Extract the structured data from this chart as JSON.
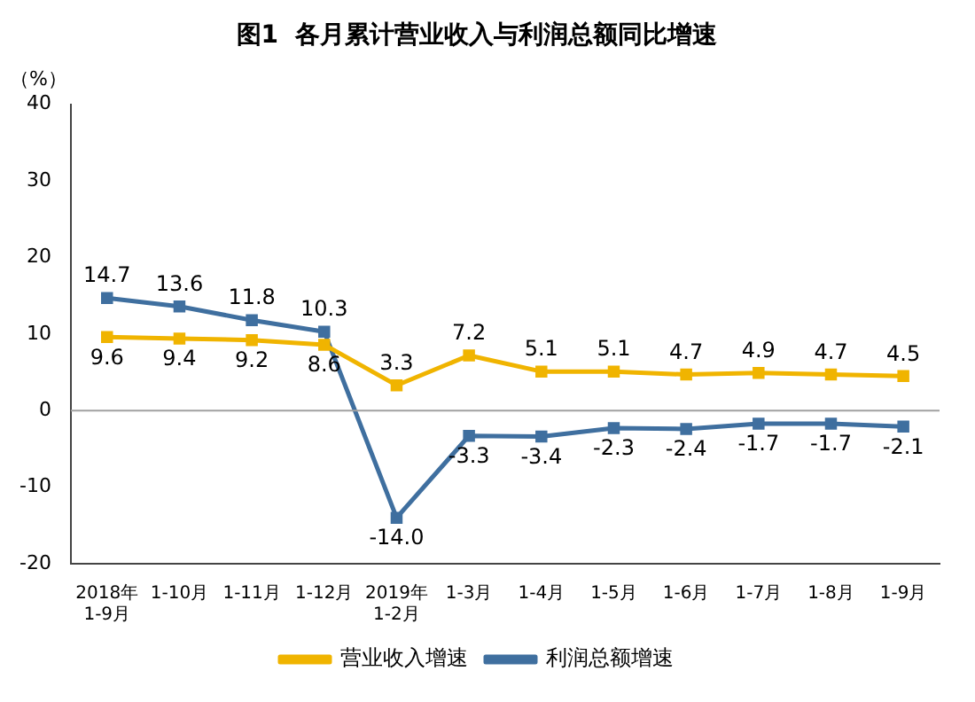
{
  "chart_data": {
    "type": "line",
    "title": "图1  各月累计营业收入与利润总额同比增速",
    "ylabel": "（%）",
    "categories": [
      "2018年\n1-9月",
      "1-10月",
      "1-11月",
      "1-12月",
      "2019年\n1-2月",
      "1-3月",
      "1-4月",
      "1-5月",
      "1-6月",
      "1-7月",
      "1-8月",
      "1-9月"
    ],
    "series": [
      {
        "name": "营业收入增速",
        "color": "#f0b400",
        "values": [
          9.6,
          9.4,
          9.2,
          8.6,
          3.3,
          7.2,
          5.1,
          5.1,
          4.7,
          4.9,
          4.7,
          4.5
        ],
        "value_labels": [
          "9.6",
          "9.4",
          "9.2",
          "8.6",
          "3.3",
          "7.2",
          "5.1",
          "5.1",
          "4.7",
          "4.9",
          "4.7",
          "4.5"
        ]
      },
      {
        "name": "利润总额增速",
        "color": "#3f6f9f",
        "values": [
          14.7,
          13.6,
          11.8,
          10.3,
          -14.0,
          -3.3,
          -3.4,
          -2.3,
          -2.4,
          -1.7,
          -1.7,
          -2.1
        ],
        "value_labels": [
          "14.7",
          "13.6",
          "11.8",
          "10.3",
          "-14.0",
          "-3.3",
          "-3.4",
          "-2.3",
          "-2.4",
          "-1.7",
          "-1.7",
          "-2.1"
        ]
      }
    ],
    "ylim": [
      -20,
      40
    ],
    "yticks": [
      -20,
      -10,
      0,
      10,
      20,
      30,
      40
    ],
    "ref_lines": [
      {
        "axis": "y",
        "value": 0,
        "color": "#a0a0a0"
      }
    ],
    "legend": "bottom",
    "grid": false,
    "marker": "square",
    "line_style": "solid"
  }
}
